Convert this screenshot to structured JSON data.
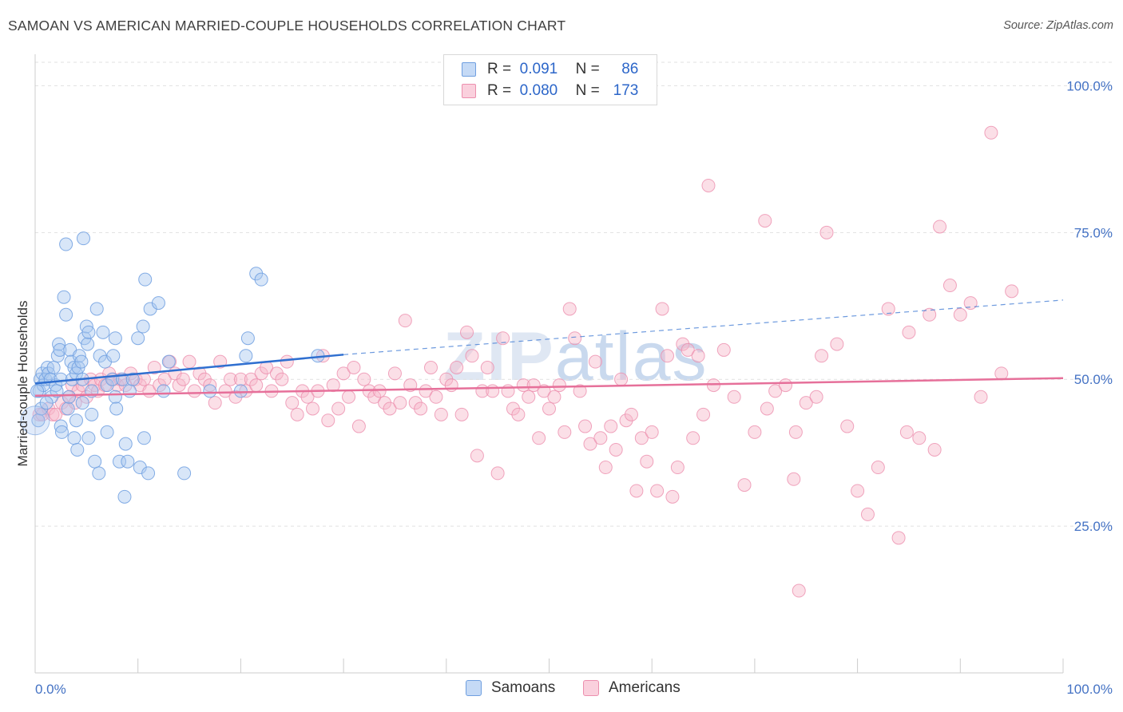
{
  "title": "SAMOAN VS AMERICAN MARRIED-COUPLE HOUSEHOLDS CORRELATION CHART",
  "source": "Source: ZipAtlas.com",
  "watermark": {
    "bold": "ZIP",
    "thin": "atlas"
  },
  "legend": {
    "samoans": {
      "r_label": "R =",
      "r_value": "0.091",
      "n_label": "N =",
      "n_value": "86"
    },
    "americans": {
      "r_label": "R =",
      "r_value": "0.080",
      "n_label": "N =",
      "n_value": "173"
    }
  },
  "bottom_legend": {
    "samoans": "Samoans",
    "americans": "Americans"
  },
  "colors": {
    "samoan_fill": "#a9c7f0",
    "samoan_stroke": "#6f9fe0",
    "samoan_line": "#2f6fd0",
    "american_fill": "#f6b8ca",
    "american_stroke": "#ec8fae",
    "american_line": "#e6709a",
    "axis_label": "#4472c4",
    "grid": "#e1e1e1"
  },
  "chart_data": {
    "type": "scatter",
    "title": "SAMOAN VS AMERICAN MARRIED-COUPLE HOUSEHOLDS CORRELATION CHART",
    "xlabel": "",
    "ylabel": "Married-couple Households",
    "xlim": [
      0,
      100
    ],
    "ylim": [
      0,
      104
    ],
    "x_tick_labels": [
      "0.0%",
      "100.0%"
    ],
    "y_tick_labels": [
      "25.0%",
      "50.0%",
      "75.0%",
      "100.0%"
    ],
    "y_ticks": [
      25,
      50,
      75,
      100
    ],
    "grid": true,
    "legend_position": "top-center",
    "series": [
      {
        "name": "Samoans",
        "points": [
          [
            0.3,
            43
          ],
          [
            0.4,
            48
          ],
          [
            0.5,
            50
          ],
          [
            0.7,
            51
          ],
          [
            0.8,
            49
          ],
          [
            1,
            50
          ],
          [
            1.2,
            52
          ],
          [
            1.3,
            51
          ],
          [
            1.5,
            50
          ],
          [
            1.6,
            47
          ],
          [
            1.8,
            52
          ],
          [
            2,
            49
          ],
          [
            2.2,
            54
          ],
          [
            2.3,
            56
          ],
          [
            2.4,
            55
          ],
          [
            2.5,
            50
          ],
          [
            2.5,
            42
          ],
          [
            2.6,
            41
          ],
          [
            2.8,
            64
          ],
          [
            3,
            61
          ],
          [
            3,
            73
          ],
          [
            3.2,
            45
          ],
          [
            3.3,
            47
          ],
          [
            3.4,
            55
          ],
          [
            3.5,
            53
          ],
          [
            3.6,
            50
          ],
          [
            3.8,
            40
          ],
          [
            3.8,
            52
          ],
          [
            4,
            43
          ],
          [
            4,
            51
          ],
          [
            4.1,
            38
          ],
          [
            4.2,
            52
          ],
          [
            4.3,
            54
          ],
          [
            4.5,
            53
          ],
          [
            4.6,
            50
          ],
          [
            4.6,
            46
          ],
          [
            4.7,
            74
          ],
          [
            4.8,
            57
          ],
          [
            5,
            59
          ],
          [
            5.1,
            56
          ],
          [
            5.2,
            58
          ],
          [
            5.2,
            40
          ],
          [
            5.5,
            44
          ],
          [
            5.5,
            48
          ],
          [
            5.8,
            36
          ],
          [
            6,
            62
          ],
          [
            6.2,
            34
          ],
          [
            6.3,
            54
          ],
          [
            6.6,
            58
          ],
          [
            6.8,
            53
          ],
          [
            7,
            41
          ],
          [
            7,
            49
          ],
          [
            7.5,
            50
          ],
          [
            7.6,
            54
          ],
          [
            7.8,
            57
          ],
          [
            7.8,
            47
          ],
          [
            7.9,
            45
          ],
          [
            8.2,
            36
          ],
          [
            8.5,
            50
          ],
          [
            8.7,
            30
          ],
          [
            8.8,
            39
          ],
          [
            9,
            36
          ],
          [
            9.2,
            48
          ],
          [
            9.5,
            50
          ],
          [
            10,
            57
          ],
          [
            10.2,
            35
          ],
          [
            10.5,
            59
          ],
          [
            10.6,
            40
          ],
          [
            10.7,
            67
          ],
          [
            11,
            34
          ],
          [
            11.2,
            62
          ],
          [
            12,
            63
          ],
          [
            12.5,
            48
          ],
          [
            13,
            53
          ],
          [
            14.5,
            34
          ],
          [
            17,
            48
          ],
          [
            20,
            48
          ],
          [
            20.5,
            54
          ],
          [
            20.7,
            57
          ],
          [
            21.5,
            68
          ],
          [
            22,
            67
          ],
          [
            27.5,
            54
          ],
          [
            0.2,
            48
          ],
          [
            0.6,
            45
          ],
          [
            1.1,
            46
          ],
          [
            2.1,
            48
          ]
        ],
        "trend": {
          "x": [
            0,
            30
          ],
          "y": [
            49.3,
            54.2
          ],
          "dashed_extension_to": [
            100,
            63.5
          ]
        }
      },
      {
        "name": "Americans",
        "points": [
          [
            0.4,
            44
          ],
          [
            0.7,
            44
          ],
          [
            1.3,
            45
          ],
          [
            1.7,
            44
          ],
          [
            2,
            44
          ],
          [
            2.6,
            46
          ],
          [
            3,
            45
          ],
          [
            3.3,
            47
          ],
          [
            3.6,
            49
          ],
          [
            3.9,
            46
          ],
          [
            4.2,
            48
          ],
          [
            4.6,
            49
          ],
          [
            5,
            47
          ],
          [
            5.4,
            50
          ],
          [
            5.8,
            49
          ],
          [
            6.1,
            48
          ],
          [
            6.4,
            50
          ],
          [
            6.8,
            49
          ],
          [
            7.2,
            51
          ],
          [
            7.6,
            50
          ],
          [
            8,
            49
          ],
          [
            8.3,
            50
          ],
          [
            8.8,
            49
          ],
          [
            9.3,
            51
          ],
          [
            9.8,
            50
          ],
          [
            10.2,
            49
          ],
          [
            10.6,
            50
          ],
          [
            11.1,
            48
          ],
          [
            11.6,
            52
          ],
          [
            12.1,
            49
          ],
          [
            12.6,
            50
          ],
          [
            13.1,
            53
          ],
          [
            13.6,
            51
          ],
          [
            14,
            49
          ],
          [
            14.4,
            50
          ],
          [
            15,
            53
          ],
          [
            15.5,
            48
          ],
          [
            16,
            51
          ],
          [
            16.5,
            50
          ],
          [
            17,
            49
          ],
          [
            17.5,
            46
          ],
          [
            18,
            53
          ],
          [
            18.5,
            48
          ],
          [
            19,
            50
          ],
          [
            19.5,
            47
          ],
          [
            20,
            50
          ],
          [
            20.5,
            48
          ],
          [
            21,
            50
          ],
          [
            21.5,
            49
          ],
          [
            22,
            51
          ],
          [
            22.5,
            52
          ],
          [
            23,
            48
          ],
          [
            23.5,
            51
          ],
          [
            24,
            50
          ],
          [
            24.5,
            53
          ],
          [
            25,
            46
          ],
          [
            25.5,
            44
          ],
          [
            26,
            48
          ],
          [
            26.5,
            47
          ],
          [
            27,
            45
          ],
          [
            27.5,
            48
          ],
          [
            28,
            54
          ],
          [
            28.5,
            43
          ],
          [
            29,
            49
          ],
          [
            29.5,
            45
          ],
          [
            30,
            51
          ],
          [
            30.5,
            47
          ],
          [
            31,
            52
          ],
          [
            31.5,
            42
          ],
          [
            32,
            50
          ],
          [
            32.5,
            48
          ],
          [
            33,
            47
          ],
          [
            33.5,
            48
          ],
          [
            34,
            46
          ],
          [
            34.5,
            45
          ],
          [
            35,
            51
          ],
          [
            35.5,
            46
          ],
          [
            36,
            60
          ],
          [
            36.5,
            49
          ],
          [
            37,
            46
          ],
          [
            37.5,
            45
          ],
          [
            38,
            48
          ],
          [
            38.5,
            52
          ],
          [
            39,
            47
          ],
          [
            39.5,
            44
          ],
          [
            40,
            50
          ],
          [
            40.5,
            49
          ],
          [
            41,
            52
          ],
          [
            41.5,
            44
          ],
          [
            42,
            58
          ],
          [
            42.5,
            54
          ],
          [
            43,
            37
          ],
          [
            43.5,
            48
          ],
          [
            44,
            52
          ],
          [
            44.5,
            48
          ],
          [
            45,
            34
          ],
          [
            45.5,
            57
          ],
          [
            46,
            48
          ],
          [
            46.5,
            45
          ],
          [
            47,
            44
          ],
          [
            47.5,
            49
          ],
          [
            48,
            47
          ],
          [
            48.5,
            49
          ],
          [
            49,
            40
          ],
          [
            49.5,
            48
          ],
          [
            50,
            45
          ],
          [
            50.5,
            47
          ],
          [
            51,
            49
          ],
          [
            51.5,
            41
          ],
          [
            52,
            62
          ],
          [
            52.5,
            57
          ],
          [
            53,
            48
          ],
          [
            53.5,
            42
          ],
          [
            54,
            39
          ],
          [
            54.5,
            53
          ],
          [
            55,
            40
          ],
          [
            55.5,
            35
          ],
          [
            56,
            42
          ],
          [
            56.5,
            38
          ],
          [
            57,
            50
          ],
          [
            57.5,
            43
          ],
          [
            58,
            44
          ],
          [
            58.5,
            31
          ],
          [
            59,
            40
          ],
          [
            59.5,
            36
          ],
          [
            60,
            41
          ],
          [
            60.5,
            31
          ],
          [
            61,
            62
          ],
          [
            61.5,
            54
          ],
          [
            62,
            30
          ],
          [
            62.5,
            35
          ],
          [
            63,
            56
          ],
          [
            63.5,
            55
          ],
          [
            64,
            40
          ],
          [
            64.5,
            54
          ],
          [
            65,
            44
          ],
          [
            66,
            49
          ],
          [
            67,
            55
          ],
          [
            68,
            47
          ],
          [
            69,
            32
          ],
          [
            70,
            41
          ],
          [
            71,
            77
          ],
          [
            72,
            48
          ],
          [
            73,
            49
          ],
          [
            74,
            41
          ],
          [
            75,
            46
          ],
          [
            76,
            47
          ],
          [
            77,
            75
          ],
          [
            78,
            56
          ],
          [
            79,
            42
          ],
          [
            80,
            31
          ],
          [
            81,
            27
          ],
          [
            82,
            35
          ],
          [
            83,
            62
          ],
          [
            84,
            23
          ],
          [
            85,
            58
          ],
          [
            86,
            40
          ],
          [
            87,
            61
          ],
          [
            88,
            76
          ],
          [
            89,
            66
          ],
          [
            90,
            61
          ],
          [
            91,
            63
          ],
          [
            92,
            47
          ],
          [
            93,
            92
          ],
          [
            94,
            51
          ],
          [
            95,
            65
          ],
          [
            71.2,
            45
          ],
          [
            65.5,
            83
          ],
          [
            76.5,
            54
          ],
          [
            87.5,
            38
          ],
          [
            84.8,
            41
          ],
          [
            74.3,
            14
          ],
          [
            73.8,
            33
          ]
        ],
        "trend": {
          "x": [
            0,
            100
          ],
          "y": [
            47.2,
            50.2
          ]
        }
      }
    ]
  }
}
